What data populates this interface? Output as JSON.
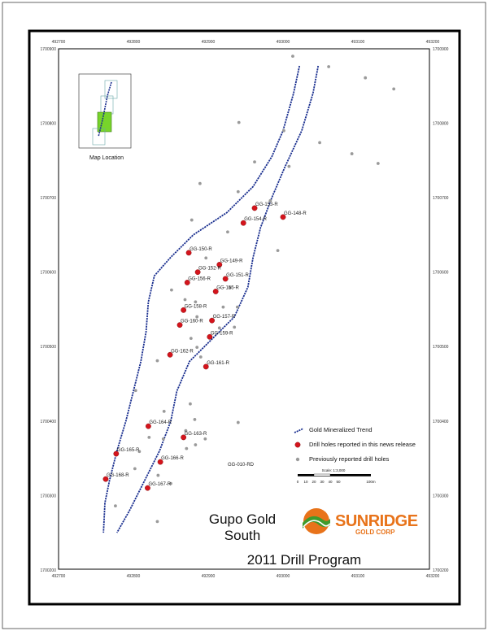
{
  "grid": {
    "x_labels": [
      "492700",
      "492800",
      "492900",
      "493000",
      "493100",
      "493200"
    ],
    "y_labels": [
      "1700900",
      "1700800",
      "1700700",
      "1700600",
      "1700500",
      "1700400",
      "1700300",
      "1700200"
    ]
  },
  "inset": {
    "label": "Map Location"
  },
  "drill_holes_new": [
    {
      "label": "GG-153-R",
      "x": 492962,
      "y": 1700686
    },
    {
      "label": "GG-148-R",
      "x": 493000,
      "y": 1700674
    },
    {
      "label": "GG-154-R",
      "x": 492947,
      "y": 1700666
    },
    {
      "label": "GG-150-R",
      "x": 492874,
      "y": 1700626
    },
    {
      "label": "GG-149-R",
      "x": 492915,
      "y": 1700610
    },
    {
      "label": "GG-152-R",
      "x": 492886,
      "y": 1700600
    },
    {
      "label": "GG-151-R",
      "x": 492923,
      "y": 1700591
    },
    {
      "label": "GG-156-R",
      "x": 492872,
      "y": 1700586
    },
    {
      "label": "GG-155-R",
      "x": 492910,
      "y": 1700574
    },
    {
      "label": "GG-158-R",
      "x": 492867,
      "y": 1700549
    },
    {
      "label": "GG-157-R",
      "x": 492905,
      "y": 1700535
    },
    {
      "label": "GG-160-R",
      "x": 492862,
      "y": 1700529
    },
    {
      "label": "GG-159-R",
      "x": 492902,
      "y": 1700513
    },
    {
      "label": "GG-162-R",
      "x": 492849,
      "y": 1700489
    },
    {
      "label": "GG-161-R",
      "x": 492897,
      "y": 1700473
    },
    {
      "label": "GG-164-R",
      "x": 492820,
      "y": 1700393
    },
    {
      "label": "GG-163-R",
      "x": 492867,
      "y": 1700378
    },
    {
      "label": "GG-165-R",
      "x": 492777,
      "y": 1700356
    },
    {
      "label": "GG-166-R",
      "x": 492836,
      "y": 1700345
    },
    {
      "label": "GG-168-R",
      "x": 492763,
      "y": 1700322
    },
    {
      "label": "GG-167-R",
      "x": 492819,
      "y": 1700310
    }
  ],
  "drill_holes_previous": [
    {
      "x": 493013,
      "y": 1700890
    },
    {
      "x": 493061,
      "y": 1700876
    },
    {
      "x": 493110,
      "y": 1700861
    },
    {
      "x": 493148,
      "y": 1700846
    },
    {
      "x": 492941,
      "y": 1700801
    },
    {
      "x": 493001,
      "y": 1700790
    },
    {
      "x": 493049,
      "y": 1700774
    },
    {
      "x": 493092,
      "y": 1700759
    },
    {
      "x": 492962,
      "y": 1700748
    },
    {
      "x": 493008,
      "y": 1700742
    },
    {
      "x": 493127,
      "y": 1700746
    },
    {
      "x": 492889,
      "y": 1700719
    },
    {
      "x": 492940,
      "y": 1700708
    },
    {
      "x": 492878,
      "y": 1700670
    },
    {
      "x": 492926,
      "y": 1700654
    },
    {
      "x": 492983,
      "y": 1700696
    },
    {
      "x": 492993,
      "y": 1700629
    },
    {
      "x": 492897,
      "y": 1700619
    },
    {
      "x": 492929,
      "y": 1700579
    },
    {
      "x": 492851,
      "y": 1700576
    },
    {
      "x": 492869,
      "y": 1700563
    },
    {
      "x": 492883,
      "y": 1700560
    },
    {
      "x": 492920,
      "y": 1700553
    },
    {
      "x": 492939,
      "y": 1700553
    },
    {
      "x": 492885,
      "y": 1700540
    },
    {
      "x": 492915,
      "y": 1700525
    },
    {
      "x": 492935,
      "y": 1700526
    },
    {
      "x": 492877,
      "y": 1700511
    },
    {
      "x": 492885,
      "y": 1700499
    },
    {
      "x": 492890,
      "y": 1700486
    },
    {
      "x": 492832,
      "y": 1700481
    },
    {
      "x": 492803,
      "y": 1700441
    },
    {
      "x": 492876,
      "y": 1700423
    },
    {
      "x": 492882,
      "y": 1700402
    },
    {
      "x": 492841,
      "y": 1700413
    },
    {
      "x": 492940,
      "y": 1700398
    },
    {
      "x": 492821,
      "y": 1700378
    },
    {
      "x": 492840,
      "y": 1700376
    },
    {
      "x": 492870,
      "y": 1700387
    },
    {
      "x": 492883,
      "y": 1700368
    },
    {
      "x": 492896,
      "y": 1700376
    },
    {
      "x": 492808,
      "y": 1700359
    },
    {
      "x": 492871,
      "y": 1700363
    },
    {
      "x": 492802,
      "y": 1700336
    },
    {
      "x": 492833,
      "y": 1700327
    },
    {
      "x": 492850,
      "y": 1700316
    },
    {
      "x": 492776,
      "y": 1700286
    },
    {
      "x": 492832,
      "y": 1700265
    }
  ],
  "trend_left": [
    [
      493022,
      1700877
    ],
    [
      493014,
      1700840
    ],
    [
      493000,
      1700790
    ],
    [
      492985,
      1700755
    ],
    [
      492960,
      1700715
    ],
    [
      492925,
      1700680
    ],
    [
      492880,
      1700650
    ],
    [
      492850,
      1700620
    ],
    [
      492828,
      1700595
    ],
    [
      492820,
      1700560
    ],
    [
      492817,
      1700520
    ],
    [
      492810,
      1700480
    ],
    [
      492800,
      1700440
    ],
    [
      492790,
      1700400
    ],
    [
      492778,
      1700360
    ],
    [
      492768,
      1700320
    ],
    [
      492762,
      1700290
    ],
    [
      492760,
      1700250
    ]
  ],
  "trend_right": [
    [
      493047,
      1700877
    ],
    [
      493040,
      1700840
    ],
    [
      493025,
      1700790
    ],
    [
      493002,
      1700740
    ],
    [
      492985,
      1700700
    ],
    [
      492970,
      1700660
    ],
    [
      492960,
      1700620
    ],
    [
      492953,
      1700580
    ],
    [
      492935,
      1700540
    ],
    [
      492905,
      1700510
    ],
    [
      492875,
      1700480
    ],
    [
      492858,
      1700440
    ],
    [
      492850,
      1700400
    ],
    [
      492835,
      1700360
    ],
    [
      492815,
      1700320
    ],
    [
      492795,
      1700280
    ],
    [
      492778,
      1700250
    ]
  ],
  "labels": {
    "other_hole": "GG-010-RD"
  },
  "legend": {
    "trend": "Gold Mineralized Trend",
    "new_holes": "Drill holes reported in this news release",
    "previous_holes": "Previously reported drill holes"
  },
  "scale": {
    "title": "Scale: 1:3,000",
    "ticks": [
      "0",
      "10",
      "20",
      "30",
      "40",
      "50",
      "100m"
    ]
  },
  "title": {
    "line1": "Gupo Gold",
    "line2": "South",
    "line3": "2011 Drill Program"
  },
  "brand": {
    "name": "SUNRIDGE",
    "sub": "GOLD CORP"
  },
  "colors": {
    "frame": "#000000",
    "trend": "#1a2f8f",
    "new_hole": "#d4141c",
    "previous_hole": "#9a9a9a",
    "inset_highlight": "#77d42a",
    "inset_outline": "#6aa8a8",
    "brand_orange": "#e8731a",
    "brand_green": "#3f9b2c"
  }
}
